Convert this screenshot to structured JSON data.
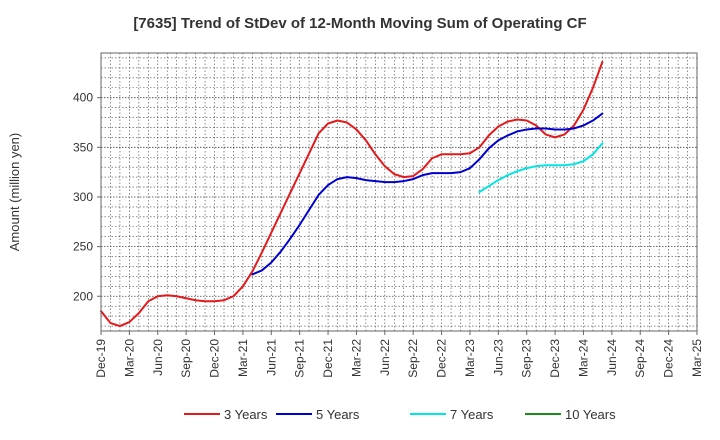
{
  "chart_data": {
    "type": "line",
    "title": "[7635]  Trend of StDev of 12-Month Moving Sum of Operating CF",
    "ylabel": "Amount (million yen)",
    "xlabel": "",
    "ylim": [
      165,
      445
    ],
    "yticks": [
      200,
      250,
      300,
      350,
      400
    ],
    "x_categories": [
      "Dec-19",
      "Mar-20",
      "Jun-20",
      "Sep-20",
      "Dec-20",
      "Mar-21",
      "Jun-21",
      "Sep-21",
      "Dec-21",
      "Mar-22",
      "Jun-22",
      "Sep-22",
      "Dec-22",
      "Mar-23",
      "Jun-23",
      "Sep-23",
      "Dec-23",
      "Mar-24",
      "Jun-24",
      "Sep-24",
      "Dec-24",
      "Mar-25"
    ],
    "grid": true,
    "legend_position": "bottom",
    "series": [
      {
        "name": "3 Years",
        "color": "#e31a1c",
        "points": [
          [
            0,
            185
          ],
          [
            1,
            173
          ],
          [
            2,
            170
          ],
          [
            3,
            174
          ],
          [
            4,
            183
          ],
          [
            5,
            195
          ],
          [
            6,
            200
          ],
          [
            7,
            201
          ],
          [
            8,
            200
          ],
          [
            9,
            198
          ],
          [
            10,
            196
          ],
          [
            11,
            195
          ],
          [
            12,
            195
          ],
          [
            13,
            196
          ],
          [
            14,
            200
          ],
          [
            15,
            210
          ],
          [
            16,
            225
          ],
          [
            17,
            244
          ],
          [
            18,
            264
          ],
          [
            19,
            284
          ],
          [
            20,
            304
          ],
          [
            21,
            324
          ],
          [
            22,
            344
          ],
          [
            23,
            364
          ],
          [
            24,
            374
          ],
          [
            25,
            377
          ],
          [
            26,
            375
          ],
          [
            27,
            368
          ],
          [
            28,
            357
          ],
          [
            29,
            343
          ],
          [
            30,
            331
          ],
          [
            31,
            323
          ],
          [
            32,
            320
          ],
          [
            33,
            321
          ],
          [
            34,
            328
          ],
          [
            35,
            339
          ],
          [
            36,
            343
          ],
          [
            37,
            343
          ],
          [
            38,
            343
          ],
          [
            39,
            344
          ],
          [
            40,
            350
          ],
          [
            41,
            362
          ],
          [
            42,
            371
          ],
          [
            43,
            376
          ],
          [
            44,
            378
          ],
          [
            45,
            377
          ],
          [
            46,
            372
          ],
          [
            47,
            363
          ],
          [
            48,
            360
          ],
          [
            49,
            363
          ],
          [
            50,
            372
          ],
          [
            51,
            388
          ],
          [
            52,
            410
          ],
          [
            53,
            436
          ]
        ]
      },
      {
        "name": "5 Years",
        "color": "#0000cc",
        "points": [
          [
            16,
            222
          ],
          [
            17,
            226
          ],
          [
            18,
            234
          ],
          [
            19,
            245
          ],
          [
            20,
            258
          ],
          [
            21,
            272
          ],
          [
            22,
            287
          ],
          [
            23,
            302
          ],
          [
            24,
            312
          ],
          [
            25,
            318
          ],
          [
            26,
            320
          ],
          [
            27,
            319
          ],
          [
            28,
            317
          ],
          [
            29,
            316
          ],
          [
            30,
            315
          ],
          [
            31,
            315
          ],
          [
            32,
            316
          ],
          [
            33,
            318
          ],
          [
            34,
            322
          ],
          [
            35,
            324
          ],
          [
            36,
            324
          ],
          [
            37,
            324
          ],
          [
            38,
            325
          ],
          [
            39,
            329
          ],
          [
            40,
            338
          ],
          [
            41,
            349
          ],
          [
            42,
            357
          ],
          [
            43,
            362
          ],
          [
            44,
            366
          ],
          [
            45,
            368
          ],
          [
            46,
            369
          ],
          [
            47,
            369
          ],
          [
            48,
            368
          ],
          [
            49,
            368
          ],
          [
            50,
            369
          ],
          [
            51,
            372
          ],
          [
            52,
            377
          ],
          [
            53,
            384
          ]
        ]
      },
      {
        "name": "7 Years",
        "color": "#00e5e5",
        "points": [
          [
            40,
            305
          ],
          [
            41,
            311
          ],
          [
            42,
            317
          ],
          [
            43,
            322
          ],
          [
            44,
            326
          ],
          [
            45,
            329
          ],
          [
            46,
            331
          ],
          [
            47,
            332
          ],
          [
            48,
            332
          ],
          [
            49,
            332
          ],
          [
            50,
            333
          ],
          [
            51,
            336
          ],
          [
            52,
            343
          ],
          [
            53,
            354
          ]
        ]
      },
      {
        "name": "10 Years",
        "color": "#1a8c1a",
        "points": []
      }
    ]
  }
}
